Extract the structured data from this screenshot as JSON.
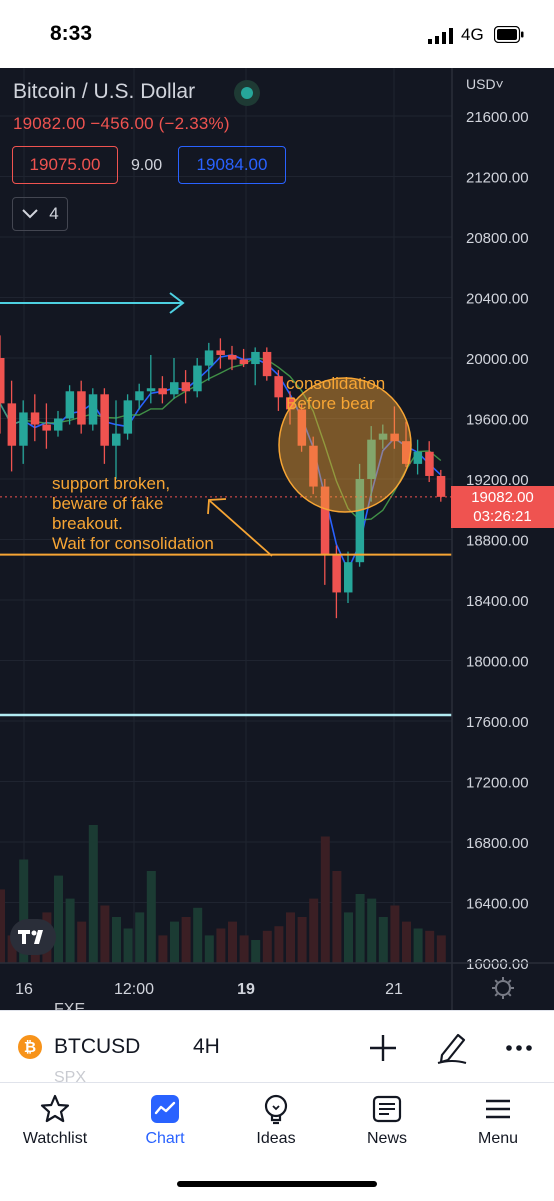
{
  "status_bar": {
    "time": "8:33",
    "network": "4G"
  },
  "chart_header": {
    "title": "Bitcoin / U.S. Dollar",
    "change": "19082.00  −456.00 (−2.33%)",
    "sell_price": "19075.00",
    "spread": "9.00",
    "buy_price": "19084.00",
    "indicators_count": "4"
  },
  "price_axis": {
    "currency": "USD˅",
    "labels": [
      "21600.00",
      "21200.00",
      "20800.00",
      "20400.00",
      "20000.00",
      "19600.00",
      "19200.00",
      "18800.00",
      "18400.00",
      "18000.00",
      "17600.00",
      "17200.00",
      "16800.00",
      "16400.00",
      "16000.00"
    ],
    "last_price": "19082.00",
    "countdown": "03:26:21"
  },
  "time_axis": {
    "labels": [
      "16",
      "12:00",
      "19",
      "21"
    ]
  },
  "annotations": {
    "consolidation": "consolidation\nBefore bear",
    "support": "support broken,\nbeware of fake\nbreakout.\nWait for consolidation"
  },
  "ghost_text": [
    "FXE",
    "SPX"
  ],
  "symbol_bar": {
    "symbol": "BTCUSD",
    "interval": "4H"
  },
  "tab_bar": {
    "tabs": [
      {
        "label": "Watchlist",
        "icon": "star-icon",
        "active": false
      },
      {
        "label": "Chart",
        "icon": "chart-icon",
        "active": true
      },
      {
        "label": "Ideas",
        "icon": "lightbulb-icon",
        "active": false
      },
      {
        "label": "News",
        "icon": "news-icon",
        "active": false
      },
      {
        "label": "Menu",
        "icon": "menu-icon",
        "active": false
      }
    ]
  },
  "colors": {
    "bull": "#26a69a",
    "bear": "#ef5350",
    "accent": "#2962ff",
    "annotation": "#f7a534",
    "background": "#131722"
  },
  "chart_data": {
    "type": "candlestick",
    "symbol": "BTCUSD",
    "interval": "4H",
    "ylim": [
      16000,
      21600
    ],
    "x_ticks": [
      "16",
      "12:00",
      "19",
      "21"
    ],
    "last_price": 19082.0,
    "support_line": 18700,
    "lower_line": 17640,
    "candles": [
      {
        "o": 20000,
        "h": 20150,
        "l": 19500,
        "c": 19700
      },
      {
        "o": 19700,
        "h": 19850,
        "l": 19250,
        "c": 19420
      },
      {
        "o": 19420,
        "h": 19720,
        "l": 19300,
        "c": 19640
      },
      {
        "o": 19640,
        "h": 19760,
        "l": 19450,
        "c": 19560
      },
      {
        "o": 19560,
        "h": 19700,
        "l": 19400,
        "c": 19520
      },
      {
        "o": 19520,
        "h": 19650,
        "l": 19480,
        "c": 19600
      },
      {
        "o": 19600,
        "h": 19820,
        "l": 19560,
        "c": 19780
      },
      {
        "o": 19780,
        "h": 19850,
        "l": 19500,
        "c": 19560
      },
      {
        "o": 19560,
        "h": 19800,
        "l": 19520,
        "c": 19760
      },
      {
        "o": 19760,
        "h": 19800,
        "l": 19300,
        "c": 19420
      },
      {
        "o": 19420,
        "h": 19720,
        "l": 19200,
        "c": 19500
      },
      {
        "o": 19500,
        "h": 19760,
        "l": 19460,
        "c": 19720
      },
      {
        "o": 19720,
        "h": 19830,
        "l": 19660,
        "c": 19780
      },
      {
        "o": 19780,
        "h": 20020,
        "l": 19700,
        "c": 19800
      },
      {
        "o": 19800,
        "h": 19880,
        "l": 19700,
        "c": 19760
      },
      {
        "o": 19760,
        "h": 20000,
        "l": 19730,
        "c": 19840
      },
      {
        "o": 19840,
        "h": 19920,
        "l": 19700,
        "c": 19780
      },
      {
        "o": 19780,
        "h": 20000,
        "l": 19740,
        "c": 19950
      },
      {
        "o": 19950,
        "h": 20100,
        "l": 19850,
        "c": 20050
      },
      {
        "o": 20050,
        "h": 20130,
        "l": 19930,
        "c": 20020
      },
      {
        "o": 20020,
        "h": 20080,
        "l": 19920,
        "c": 19990
      },
      {
        "o": 19990,
        "h": 20060,
        "l": 19940,
        "c": 19960
      },
      {
        "o": 19960,
        "h": 20070,
        "l": 19820,
        "c": 20040
      },
      {
        "o": 20040,
        "h": 20070,
        "l": 19850,
        "c": 19880
      },
      {
        "o": 19880,
        "h": 19920,
        "l": 19650,
        "c": 19740
      },
      {
        "o": 19740,
        "h": 19780,
        "l": 19560,
        "c": 19660
      },
      {
        "o": 19660,
        "h": 19700,
        "l": 19380,
        "c": 19420
      },
      {
        "o": 19420,
        "h": 19480,
        "l": 19100,
        "c": 19150
      },
      {
        "o": 19150,
        "h": 19200,
        "l": 18500,
        "c": 18700
      },
      {
        "o": 18700,
        "h": 18760,
        "l": 18280,
        "c": 18450
      },
      {
        "o": 18450,
        "h": 18720,
        "l": 18380,
        "c": 18650
      },
      {
        "o": 18650,
        "h": 19300,
        "l": 18620,
        "c": 19200
      },
      {
        "o": 19200,
        "h": 19550,
        "l": 19050,
        "c": 19460
      },
      {
        "o": 19460,
        "h": 19560,
        "l": 19400,
        "c": 19500
      },
      {
        "o": 19500,
        "h": 19680,
        "l": 19400,
        "c": 19450
      },
      {
        "o": 19450,
        "h": 19580,
        "l": 19280,
        "c": 19300
      },
      {
        "o": 19300,
        "h": 19460,
        "l": 19230,
        "c": 19380
      },
      {
        "o": 19380,
        "h": 19450,
        "l": 19180,
        "c": 19220
      },
      {
        "o": 19220,
        "h": 19260,
        "l": 19050,
        "c": 19082
      }
    ]
  }
}
